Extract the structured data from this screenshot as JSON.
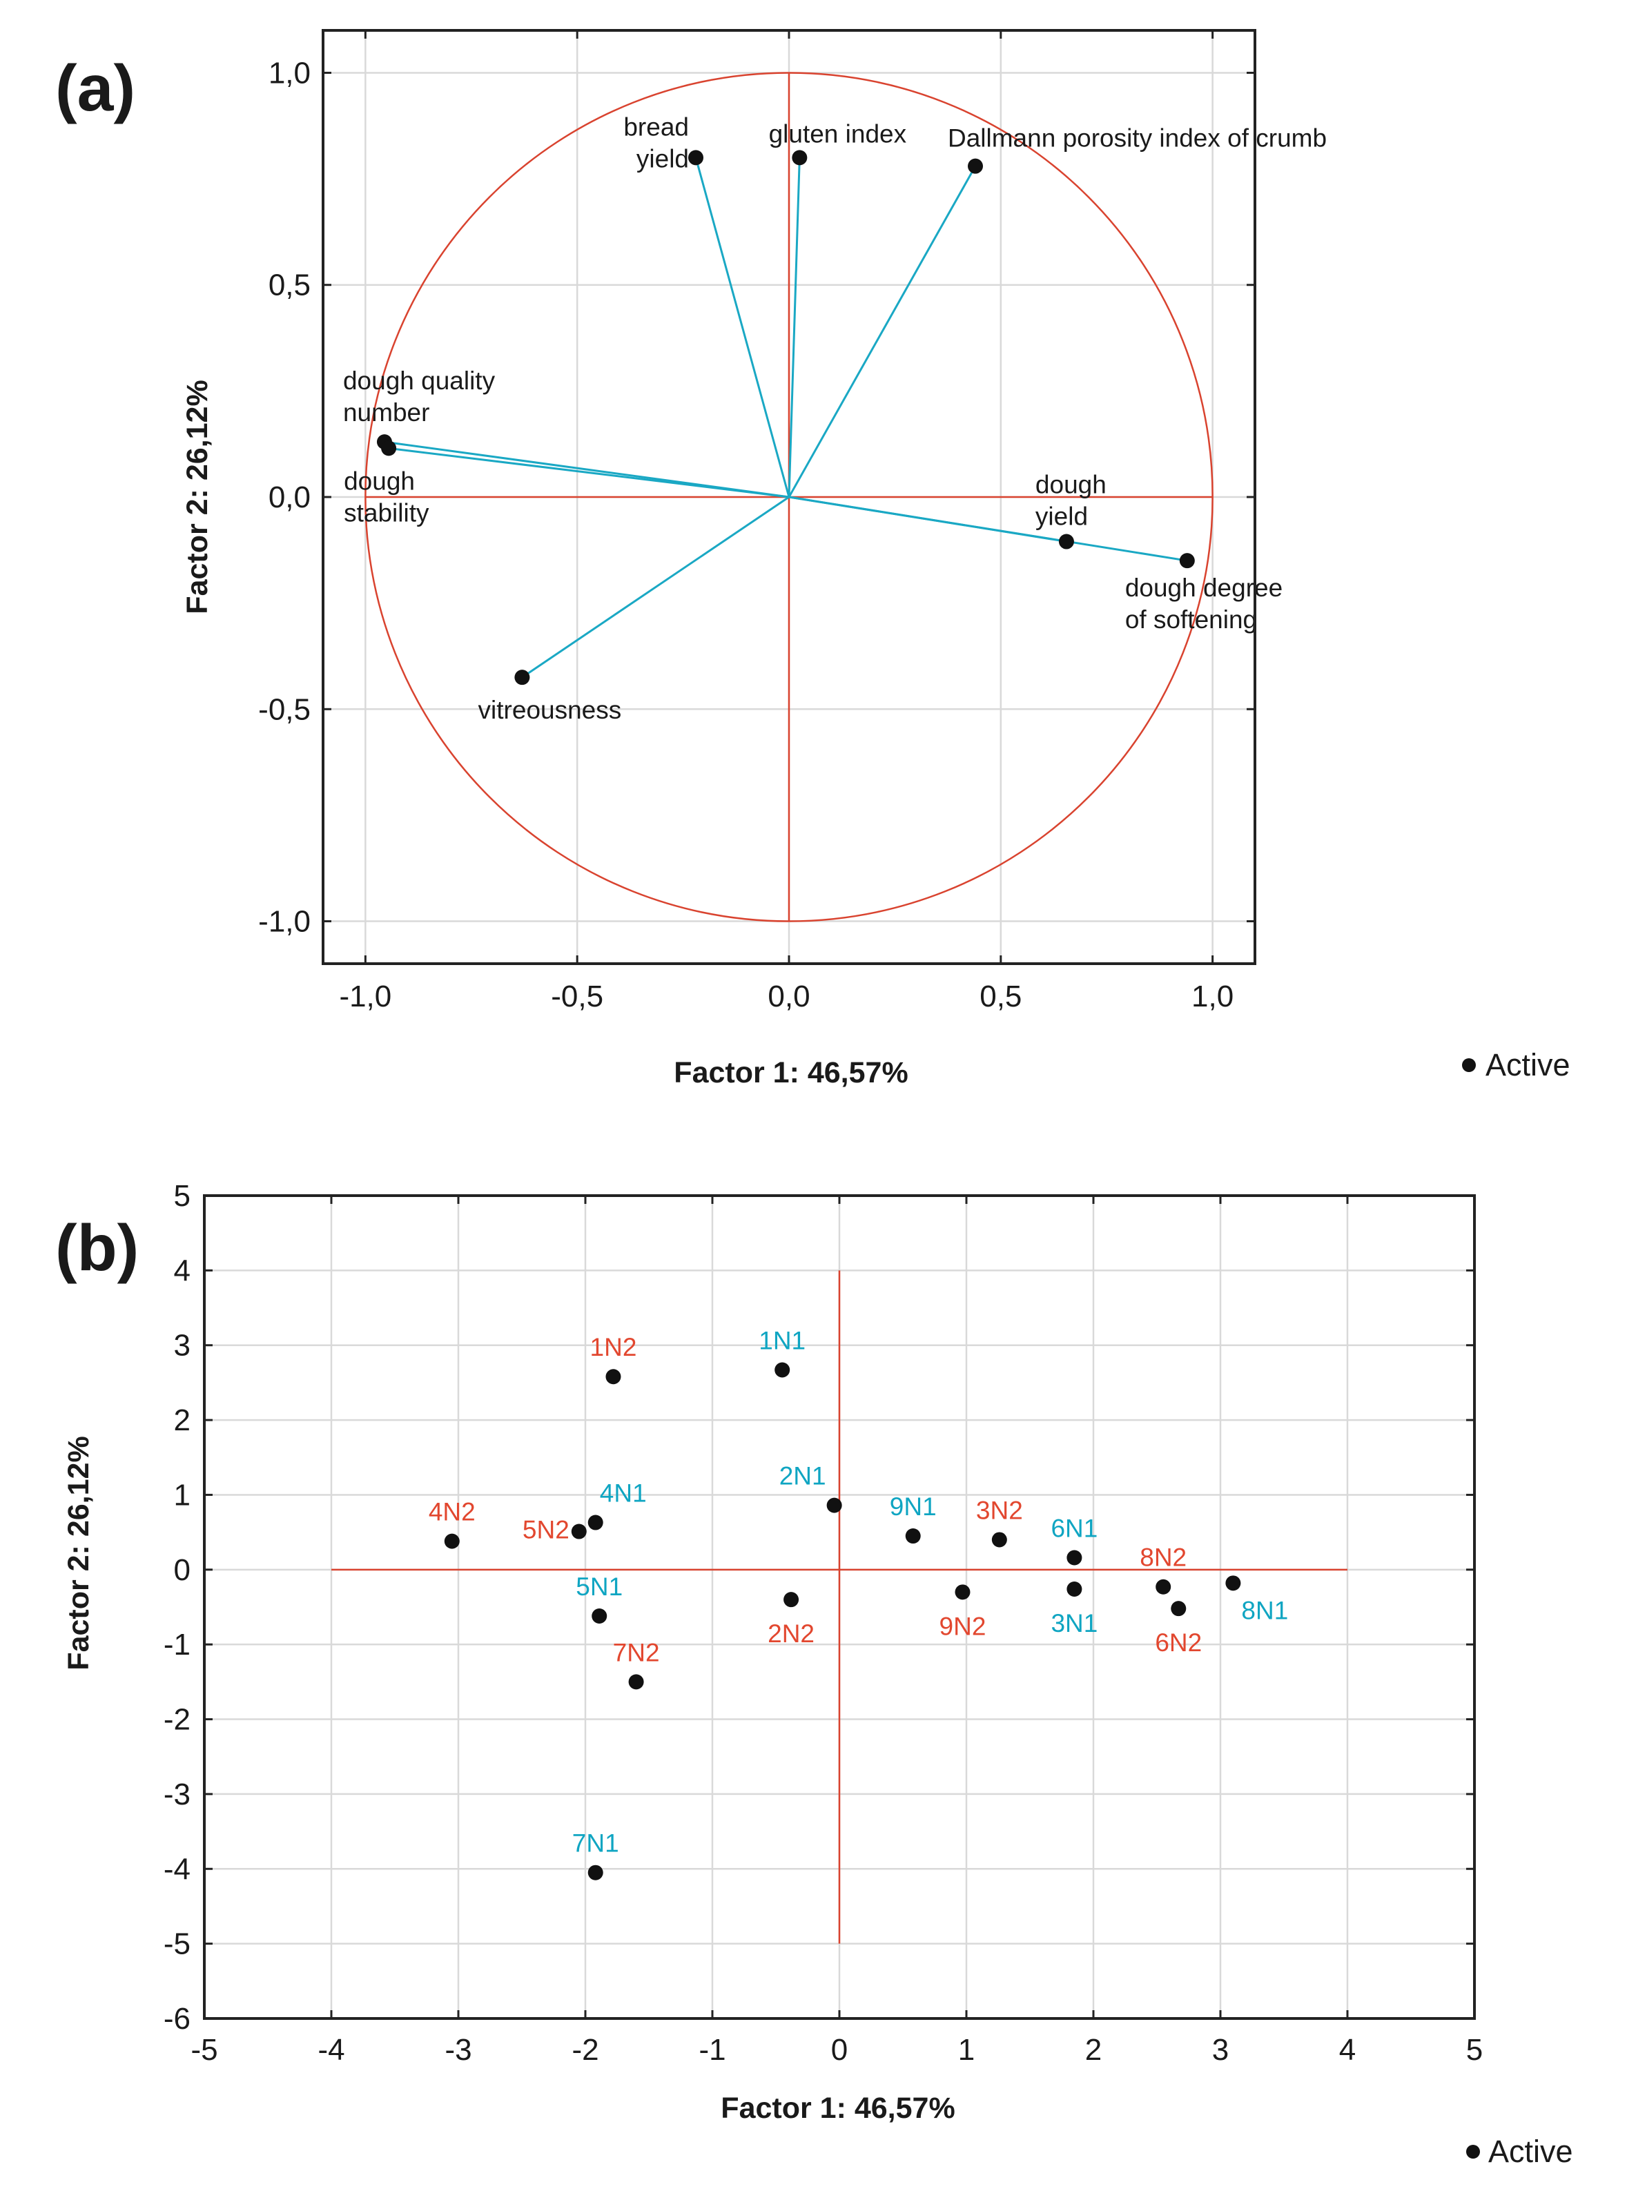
{
  "chart_data": [
    {
      "id": "a",
      "type": "scatter",
      "subtype": "correlation-circle",
      "panel_label": "(a)",
      "xlabel": "Factor 1: 46,57%",
      "ylabel": "Factor 2: 26,12%",
      "xlim": [
        -1.1,
        1.1
      ],
      "ylim": [
        -1.1,
        1.1
      ],
      "x_ticks": [
        -1.0,
        -0.5,
        0.0,
        0.5,
        1.0
      ],
      "x_tick_labels": [
        "-1,0",
        "-0,5",
        "0,0",
        "0,5",
        "1,0"
      ],
      "y_ticks": [
        1.0,
        0.5,
        0.0,
        -0.5,
        -1.0
      ],
      "y_tick_labels": [
        "1,0",
        "0,5",
        "0,0",
        "-0,5",
        "-1,0"
      ],
      "grid": true,
      "unit_circle": true,
      "legend": {
        "marker": "●",
        "text": "Active",
        "placement": "bottom-right"
      },
      "colors": {
        "circle": "#d9432f",
        "vectors": "#1aa8c4",
        "points": "#111111"
      },
      "points": [
        {
          "name": "bread yield",
          "lines": [
            "bread",
            "yield"
          ],
          "x": -0.22,
          "y": 0.8,
          "anchor": "end"
        },
        {
          "name": "gluten index",
          "lines": [
            "gluten index"
          ],
          "x": 0.025,
          "y": 0.8,
          "anchor": "middle"
        },
        {
          "name": "Dallmann porosity index of crumb",
          "lines": [
            "Dallmann porosity index of crumb"
          ],
          "x": 0.44,
          "y": 0.78,
          "anchor": "start"
        },
        {
          "name": "dough quality number",
          "lines": [
            "dough quality",
            "number"
          ],
          "x": -0.955,
          "y": 0.13,
          "anchor": "start"
        },
        {
          "name": "dough stability",
          "lines": [
            "dough",
            "stability"
          ],
          "x": -0.945,
          "y": 0.115,
          "anchor": "start"
        },
        {
          "name": "dough yield",
          "lines": [
            "dough",
            "yield"
          ],
          "x": 0.655,
          "y": -0.105,
          "anchor": "start"
        },
        {
          "name": "dough degree of softening",
          "lines": [
            "dough degree",
            "of softening"
          ],
          "x": 0.94,
          "y": -0.15,
          "anchor": "start"
        },
        {
          "name": "vitreousness",
          "lines": [
            "vitreousness"
          ],
          "x": -0.63,
          "y": -0.425,
          "anchor": "middle"
        }
      ]
    },
    {
      "id": "b",
      "type": "scatter",
      "panel_label": "(b)",
      "xlabel": "Factor 1: 46,57%",
      "ylabel": "Factor 2: 26,12%",
      "xlim": [
        -5,
        5
      ],
      "ylim": [
        -6,
        5
      ],
      "x_ticks": [
        -5,
        -4,
        -3,
        -2,
        -1,
        0,
        1,
        2,
        3,
        4,
        5
      ],
      "x_tick_labels": [
        "-5",
        "-4",
        "-3",
        "-2",
        "-1",
        "0",
        "1",
        "2",
        "3",
        "4",
        "5"
      ],
      "y_ticks": [
        5,
        4,
        3,
        2,
        1,
        0,
        -1,
        -2,
        -3,
        -4,
        -5,
        -6
      ],
      "y_tick_labels": [
        "5",
        "4",
        "3",
        "2",
        "1",
        "0",
        "-1",
        "-2",
        "-3",
        "-4",
        "-5",
        "-6"
      ],
      "grid": true,
      "reference_lines": {
        "horizontal_y": 0,
        "horizontal_x_range": [
          -4,
          4
        ],
        "vertical_x": 0,
        "vertical_y_range": [
          -5,
          4
        ]
      },
      "legend": {
        "marker": "●",
        "text": "Active",
        "placement": "bottom-right"
      },
      "colors": {
        "N1": "#0fa5c2",
        "N2": "#e2472f",
        "points": "#111111",
        "reference": "#d9432f"
      },
      "points": [
        {
          "label": "1N1",
          "group": "N1",
          "x": -0.45,
          "y": 2.67,
          "label_pos": "above"
        },
        {
          "label": "1N2",
          "group": "N2",
          "x": -1.78,
          "y": 2.58,
          "label_pos": "above"
        },
        {
          "label": "2N1",
          "group": "N1",
          "x": -0.04,
          "y": 0.86,
          "label_pos": "above-left"
        },
        {
          "label": "2N2",
          "group": "N2",
          "x": -0.38,
          "y": -0.4,
          "label_pos": "below"
        },
        {
          "label": "3N1",
          "group": "N1",
          "x": 1.85,
          "y": -0.26,
          "label_pos": "below"
        },
        {
          "label": "3N2",
          "group": "N2",
          "x": 1.26,
          "y": 0.4,
          "label_pos": "above"
        },
        {
          "label": "4N1",
          "group": "N1",
          "x": -1.92,
          "y": 0.63,
          "label_pos": "above-right"
        },
        {
          "label": "4N2",
          "group": "N2",
          "x": -3.05,
          "y": 0.38,
          "label_pos": "above"
        },
        {
          "label": "5N1",
          "group": "N1",
          "x": -1.89,
          "y": -0.62,
          "label_pos": "above"
        },
        {
          "label": "5N2",
          "group": "N2",
          "x": -2.05,
          "y": 0.51,
          "label_pos": "left"
        },
        {
          "label": "6N1",
          "group": "N1",
          "x": 1.85,
          "y": 0.16,
          "label_pos": "above"
        },
        {
          "label": "6N2",
          "group": "N2",
          "x": 2.67,
          "y": -0.52,
          "label_pos": "below"
        },
        {
          "label": "7N1",
          "group": "N1",
          "x": -1.92,
          "y": -4.05,
          "label_pos": "above"
        },
        {
          "label": "7N2",
          "group": "N2",
          "x": -1.6,
          "y": -1.5,
          "label_pos": "above"
        },
        {
          "label": "8N1",
          "group": "N1",
          "x": 3.1,
          "y": -0.18,
          "label_pos": "below-right"
        },
        {
          "label": "8N2",
          "group": "N2",
          "x": 2.55,
          "y": -0.23,
          "label_pos": "above"
        },
        {
          "label": "9N1",
          "group": "N1",
          "x": 0.58,
          "y": 0.45,
          "label_pos": "above"
        },
        {
          "label": "9N2",
          "group": "N2",
          "x": 0.97,
          "y": -0.3,
          "label_pos": "below"
        }
      ]
    }
  ]
}
